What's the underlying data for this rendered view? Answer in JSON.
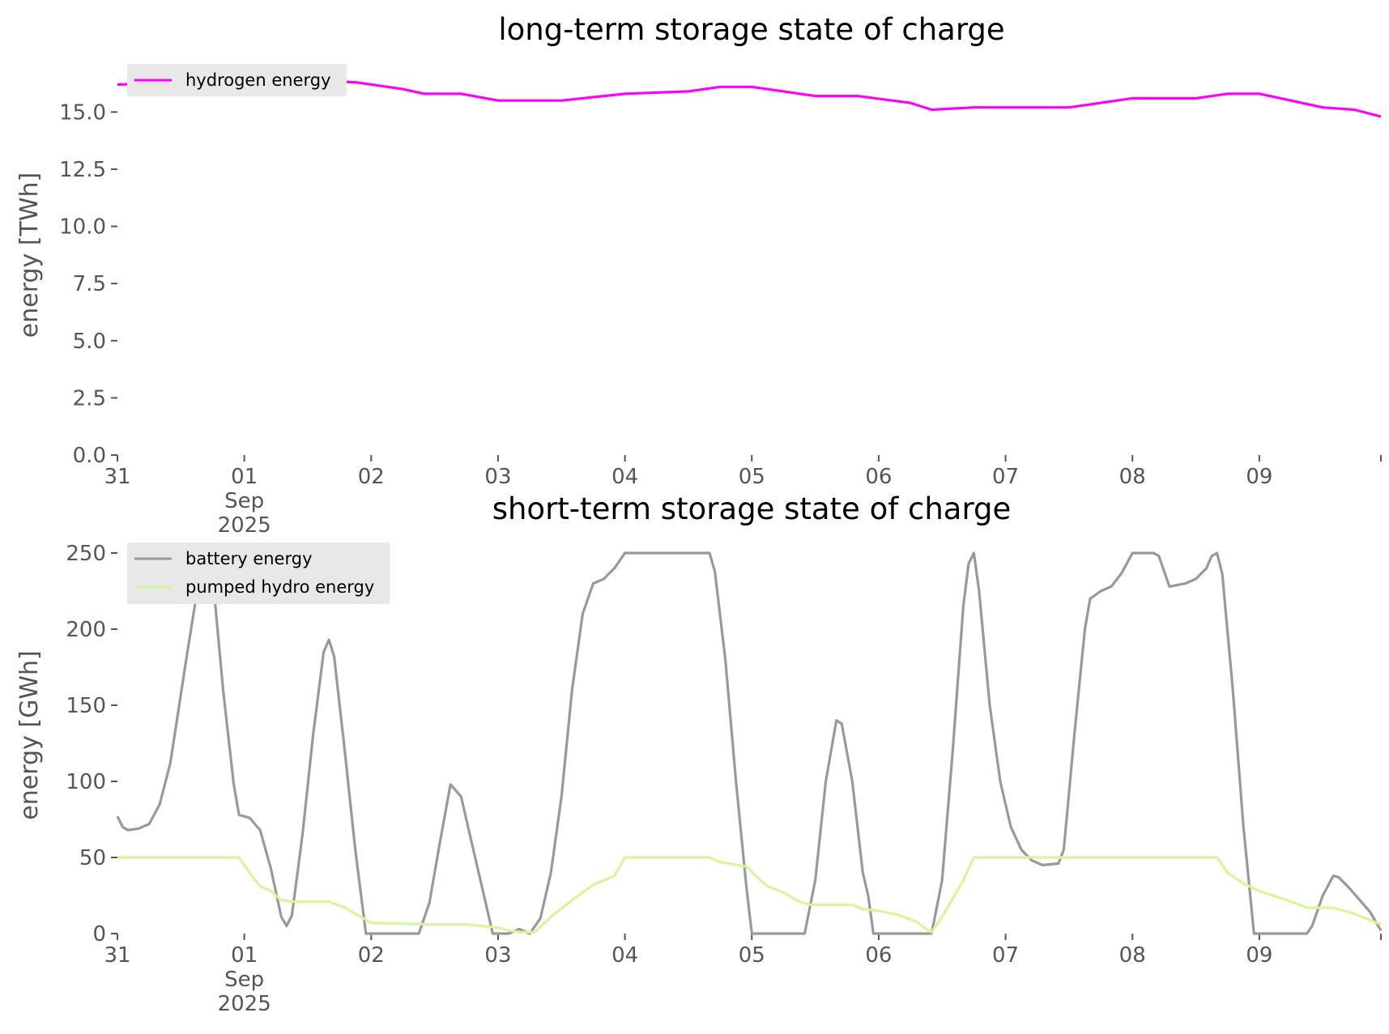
{
  "colors": {
    "hydrogen": "#ff00ff",
    "battery": "#999999",
    "pumped_hydro": "#d6f59c",
    "tick": "#555555",
    "legend_bg": "#e8e8e8"
  },
  "chart_data": [
    {
      "type": "line",
      "title": "long-term storage state of charge",
      "ylabel": "energy [TWh]",
      "xlim": [
        "2025-08-31T00:00",
        "2025-09-09T23:00"
      ],
      "ylim": [
        0,
        16.5
      ],
      "yticks": [
        0.0,
        2.5,
        5.0,
        7.5,
        10.0,
        12.5,
        15.0
      ],
      "ytick_labels": [
        "0.0",
        "2.5",
        "5.0",
        "7.5",
        "10.0",
        "12.5",
        "15.0"
      ],
      "xticks": [
        {
          "x": "2025-08-31",
          "lines": [
            "31"
          ]
        },
        {
          "x": "2025-09-01",
          "lines": [
            "01",
            "Sep",
            "2025"
          ]
        },
        {
          "x": "2025-09-02",
          "lines": [
            "02"
          ]
        },
        {
          "x": "2025-09-03",
          "lines": [
            "03"
          ]
        },
        {
          "x": "2025-09-04",
          "lines": [
            "04"
          ]
        },
        {
          "x": "2025-09-05",
          "lines": [
            "05"
          ]
        },
        {
          "x": "2025-09-06",
          "lines": [
            "06"
          ]
        },
        {
          "x": "2025-09-07",
          "lines": [
            "07"
          ]
        },
        {
          "x": "2025-09-08",
          "lines": [
            "08"
          ]
        },
        {
          "x": "2025-09-09",
          "lines": [
            "09"
          ]
        }
      ],
      "grid": false,
      "legend": "top-left",
      "series": [
        {
          "name": "hydrogen energy",
          "color": "#ff00ff",
          "points": [
            [
              "2025-08-31T00:00",
              16.2
            ],
            [
              "2025-08-31T12:00",
              16.3
            ],
            [
              "2025-08-31T16:00",
              16.4
            ],
            [
              "2025-09-01T00:00",
              16.4
            ],
            [
              "2025-09-01T12:00",
              16.4
            ],
            [
              "2025-09-01T21:00",
              16.3
            ],
            [
              "2025-09-02T06:00",
              16.0
            ],
            [
              "2025-09-02T10:00",
              15.8
            ],
            [
              "2025-09-02T17:00",
              15.8
            ],
            [
              "2025-09-03T00:00",
              15.5
            ],
            [
              "2025-09-03T12:00",
              15.5
            ],
            [
              "2025-09-03T20:00",
              15.7
            ],
            [
              "2025-09-04T00:00",
              15.8
            ],
            [
              "2025-09-04T12:00",
              15.9
            ],
            [
              "2025-09-04T18:00",
              16.1
            ],
            [
              "2025-09-05T00:00",
              16.1
            ],
            [
              "2025-09-05T06:00",
              15.9
            ],
            [
              "2025-09-05T12:00",
              15.7
            ],
            [
              "2025-09-05T20:00",
              15.7
            ],
            [
              "2025-09-06T06:00",
              15.4
            ],
            [
              "2025-09-06T10:00",
              15.1
            ],
            [
              "2025-09-06T18:00",
              15.2
            ],
            [
              "2025-09-07T12:00",
              15.2
            ],
            [
              "2025-09-07T18:00",
              15.4
            ],
            [
              "2025-09-08T00:00",
              15.6
            ],
            [
              "2025-09-08T12:00",
              15.6
            ],
            [
              "2025-09-08T18:00",
              15.8
            ],
            [
              "2025-09-09T00:00",
              15.8
            ],
            [
              "2025-09-09T06:00",
              15.5
            ],
            [
              "2025-09-09T12:00",
              15.2
            ],
            [
              "2025-09-09T18:00",
              15.1
            ],
            [
              "2025-09-09T23:00",
              14.8
            ]
          ]
        }
      ]
    },
    {
      "type": "line",
      "title": "short-term storage state of charge",
      "ylabel": "energy [GWh]",
      "xlim": [
        "2025-08-31T00:00",
        "2025-09-09T23:00"
      ],
      "ylim": [
        0,
        250
      ],
      "yticks": [
        0,
        50,
        100,
        150,
        200,
        250
      ],
      "ytick_labels": [
        "0",
        "50",
        "100",
        "150",
        "200",
        "250"
      ],
      "xticks": [
        {
          "x": "2025-08-31",
          "lines": [
            "31"
          ]
        },
        {
          "x": "2025-09-01",
          "lines": [
            "01",
            "Sep",
            "2025"
          ]
        },
        {
          "x": "2025-09-02",
          "lines": [
            "02"
          ]
        },
        {
          "x": "2025-09-03",
          "lines": [
            "03"
          ]
        },
        {
          "x": "2025-09-04",
          "lines": [
            "04"
          ]
        },
        {
          "x": "2025-09-05",
          "lines": [
            "05"
          ]
        },
        {
          "x": "2025-09-06",
          "lines": [
            "06"
          ]
        },
        {
          "x": "2025-09-07",
          "lines": [
            "07"
          ]
        },
        {
          "x": "2025-09-08",
          "lines": [
            "08"
          ]
        },
        {
          "x": "2025-09-09",
          "lines": [
            "09"
          ]
        }
      ],
      "grid": false,
      "legend": "top-left",
      "series": [
        {
          "name": "battery energy",
          "color": "#999999",
          "points": [
            [
              "2025-08-31T00:00",
              77
            ],
            [
              "2025-08-31T01:00",
              70
            ],
            [
              "2025-08-31T02:00",
              68
            ],
            [
              "2025-08-31T04:00",
              69
            ],
            [
              "2025-08-31T06:00",
              72
            ],
            [
              "2025-08-31T08:00",
              85
            ],
            [
              "2025-08-31T10:00",
              112
            ],
            [
              "2025-08-31T13:00",
              180
            ],
            [
              "2025-08-31T16:00",
              245
            ],
            [
              "2025-08-31T17:00",
              250
            ],
            [
              "2025-08-31T18:00",
              235
            ],
            [
              "2025-08-31T20:00",
              160
            ],
            [
              "2025-08-31T22:00",
              98
            ],
            [
              "2025-08-31T23:00",
              78
            ],
            [
              "2025-09-01T01:00",
              76
            ],
            [
              "2025-09-01T03:00",
              68
            ],
            [
              "2025-09-01T05:00",
              43
            ],
            [
              "2025-09-01T07:00",
              11
            ],
            [
              "2025-09-01T08:00",
              5
            ],
            [
              "2025-09-01T09:00",
              12
            ],
            [
              "2025-09-01T11:00",
              65
            ],
            [
              "2025-09-01T13:00",
              130
            ],
            [
              "2025-09-01T15:00",
              185
            ],
            [
              "2025-09-01T16:00",
              193
            ],
            [
              "2025-09-01T17:00",
              182
            ],
            [
              "2025-09-01T19:00",
              120
            ],
            [
              "2025-09-01T21:00",
              55
            ],
            [
              "2025-09-01T23:00",
              0
            ],
            [
              "2025-09-02T09:00",
              0
            ],
            [
              "2025-09-02T11:00",
              20
            ],
            [
              "2025-09-02T13:00",
              60
            ],
            [
              "2025-09-02T15:00",
              98
            ],
            [
              "2025-09-02T17:00",
              90
            ],
            [
              "2025-09-02T19:00",
              60
            ],
            [
              "2025-09-02T21:00",
              30
            ],
            [
              "2025-09-02T23:00",
              0
            ],
            [
              "2025-09-03T02:00",
              0
            ],
            [
              "2025-09-03T04:00",
              3
            ],
            [
              "2025-09-03T06:00",
              0
            ],
            [
              "2025-09-03T08:00",
              10
            ],
            [
              "2025-09-03T10:00",
              40
            ],
            [
              "2025-09-03T12:00",
              90
            ],
            [
              "2025-09-03T14:00",
              160
            ],
            [
              "2025-09-03T16:00",
              210
            ],
            [
              "2025-09-03T18:00",
              230
            ],
            [
              "2025-09-03T20:00",
              233
            ],
            [
              "2025-09-03T22:00",
              240
            ],
            [
              "2025-09-04T00:00",
              250
            ],
            [
              "2025-09-04T16:00",
              250
            ],
            [
              "2025-09-04T17:00",
              238
            ],
            [
              "2025-09-04T19:00",
              180
            ],
            [
              "2025-09-04T21:00",
              100
            ],
            [
              "2025-09-04T23:00",
              30
            ],
            [
              "2025-09-05T00:00",
              0
            ],
            [
              "2025-09-05T10:00",
              0
            ],
            [
              "2025-09-05T12:00",
              35
            ],
            [
              "2025-09-05T14:00",
              100
            ],
            [
              "2025-09-05T16:00",
              140
            ],
            [
              "2025-09-05T17:00",
              138
            ],
            [
              "2025-09-05T19:00",
              100
            ],
            [
              "2025-09-05T21:00",
              40
            ],
            [
              "2025-09-05T22:00",
              25
            ],
            [
              "2025-09-05T23:00",
              0
            ],
            [
              "2025-09-06T10:00",
              0
            ],
            [
              "2025-09-06T12:00",
              35
            ],
            [
              "2025-09-06T14:00",
              120
            ],
            [
              "2025-09-06T16:00",
              215
            ],
            [
              "2025-09-06T17:00",
              243
            ],
            [
              "2025-09-06T18:00",
              250
            ],
            [
              "2025-09-06T19:00",
              225
            ],
            [
              "2025-09-06T21:00",
              150
            ],
            [
              "2025-09-06T23:00",
              100
            ],
            [
              "2025-09-07T01:00",
              70
            ],
            [
              "2025-09-07T03:00",
              55
            ],
            [
              "2025-09-07T05:00",
              48
            ],
            [
              "2025-09-07T07:00",
              45
            ],
            [
              "2025-09-07T10:00",
              46
            ],
            [
              "2025-09-07T11:00",
              55
            ],
            [
              "2025-09-07T13:00",
              130
            ],
            [
              "2025-09-07T15:00",
              200
            ],
            [
              "2025-09-07T16:00",
              220
            ],
            [
              "2025-09-07T18:00",
              225
            ],
            [
              "2025-09-07T20:00",
              228
            ],
            [
              "2025-09-07T22:00",
              237
            ],
            [
              "2025-09-08T00:00",
              250
            ],
            [
              "2025-09-08T04:00",
              250
            ],
            [
              "2025-09-08T05:00",
              248
            ],
            [
              "2025-09-08T07:00",
              228
            ],
            [
              "2025-09-08T10:00",
              230
            ],
            [
              "2025-09-08T12:00",
              233
            ],
            [
              "2025-09-08T14:00",
              240
            ],
            [
              "2025-09-08T15:00",
              248
            ],
            [
              "2025-09-08T16:00",
              250
            ],
            [
              "2025-09-08T17:00",
              236
            ],
            [
              "2025-09-08T19:00",
              160
            ],
            [
              "2025-09-08T21:00",
              70
            ],
            [
              "2025-09-08T23:00",
              0
            ],
            [
              "2025-09-09T09:00",
              0
            ],
            [
              "2025-09-09T10:00",
              5
            ],
            [
              "2025-09-09T12:00",
              25
            ],
            [
              "2025-09-09T14:00",
              38
            ],
            [
              "2025-09-09T15:00",
              37
            ],
            [
              "2025-09-09T17:00",
              30
            ],
            [
              "2025-09-09T19:00",
              22
            ],
            [
              "2025-09-09T21:00",
              14
            ],
            [
              "2025-09-09T23:00",
              2
            ]
          ]
        },
        {
          "name": "pumped hydro energy",
          "color": "#d6f59c",
          "points": [
            [
              "2025-08-31T00:00",
              50
            ],
            [
              "2025-08-31T23:00",
              50
            ],
            [
              "2025-09-01T01:00",
              40
            ],
            [
              "2025-09-01T03:00",
              31
            ],
            [
              "2025-09-01T05:00",
              28
            ],
            [
              "2025-09-01T07:00",
              22
            ],
            [
              "2025-09-01T09:00",
              21
            ],
            [
              "2025-09-01T16:00",
              21
            ],
            [
              "2025-09-01T19:00",
              17
            ],
            [
              "2025-09-01T22:00",
              11
            ],
            [
              "2025-09-02T00:00",
              7
            ],
            [
              "2025-09-02T12:00",
              6
            ],
            [
              "2025-09-02T18:00",
              6
            ],
            [
              "2025-09-03T00:00",
              4
            ],
            [
              "2025-09-03T02:00",
              2
            ],
            [
              "2025-09-03T04:00",
              1
            ],
            [
              "2025-09-03T07:00",
              1
            ],
            [
              "2025-09-03T10:00",
              11
            ],
            [
              "2025-09-03T14:00",
              22
            ],
            [
              "2025-09-03T18:00",
              32
            ],
            [
              "2025-09-03T20:00",
              35
            ],
            [
              "2025-09-03T22:00",
              38
            ],
            [
              "2025-09-04T00:00",
              50
            ],
            [
              "2025-09-04T16:00",
              50
            ],
            [
              "2025-09-04T18:00",
              47
            ],
            [
              "2025-09-04T23:00",
              44
            ],
            [
              "2025-09-05T01:00",
              37
            ],
            [
              "2025-09-05T03:00",
              31
            ],
            [
              "2025-09-05T06:00",
              27
            ],
            [
              "2025-09-05T09:00",
              21
            ],
            [
              "2025-09-05T11:00",
              19
            ],
            [
              "2025-09-05T19:00",
              19
            ],
            [
              "2025-09-05T21:00",
              16
            ],
            [
              "2025-09-06T00:00",
              15
            ],
            [
              "2025-09-06T04:00",
              12
            ],
            [
              "2025-09-06T07:00",
              8
            ],
            [
              "2025-09-06T09:00",
              3
            ],
            [
              "2025-09-06T10:00",
              1
            ],
            [
              "2025-09-06T12:00",
              11
            ],
            [
              "2025-09-06T16:00",
              35
            ],
            [
              "2025-09-06T18:00",
              50
            ],
            [
              "2025-09-08T16:00",
              50
            ],
            [
              "2025-09-08T18:00",
              40
            ],
            [
              "2025-09-08T21:00",
              33
            ],
            [
              "2025-09-09T00:00",
              28
            ],
            [
              "2025-09-09T06:00",
              21
            ],
            [
              "2025-09-09T09:00",
              17
            ],
            [
              "2025-09-09T14:00",
              17
            ],
            [
              "2025-09-09T18:00",
              13
            ],
            [
              "2025-09-09T23:00",
              6
            ]
          ]
        }
      ]
    }
  ]
}
